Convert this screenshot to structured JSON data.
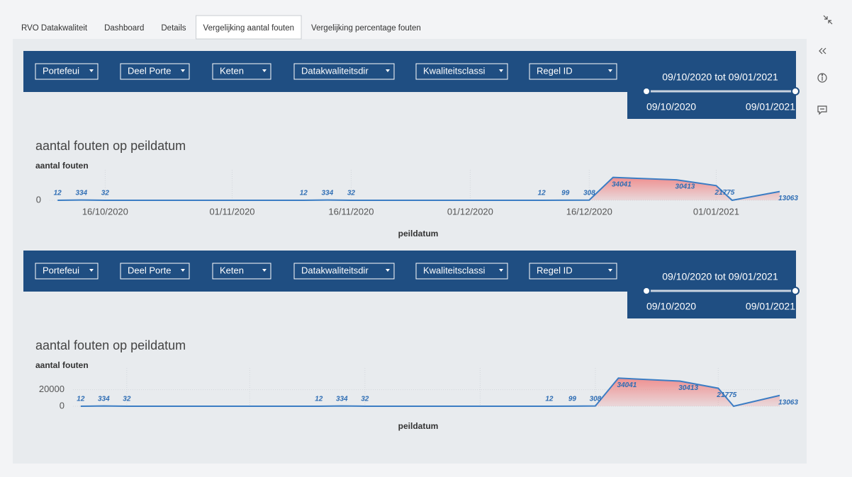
{
  "tabs": [
    "RVO Datakwaliteit",
    "Dashboard",
    "Details",
    "Vergelijking aantal fouten",
    "Vergelijking percentage fouten"
  ],
  "active_tab": 3,
  "panels": [
    {
      "filters": [
        "Portefeui",
        "Deel Porte",
        "Keten",
        "Datakwaliteitsdir",
        "Kwaliteitsclassi",
        "Regel ID"
      ],
      "range": {
        "label": "09/10/2020 tot 09/01/2021",
        "start": "09/10/2020",
        "end": "09/01/2021"
      },
      "chart": {
        "type": "line",
        "title": "aantal fouten op peildatum",
        "y_label": "aantal fouten",
        "x_label": "peildatum",
        "x": [
          "10/10/2020",
          "13/10/2020",
          "16/10/2020",
          "10/11/2020",
          "13/11/2020",
          "16/11/2020",
          "10/12/2020",
          "13/12/2020",
          "16/12/2020",
          "19/12/2020",
          "27/12/2020",
          "01/01/2021",
          "03/01/2021",
          "09/01/2021"
        ],
        "values": [
          12,
          334,
          32,
          12,
          334,
          32,
          12,
          99,
          308,
          34041,
          30413,
          21775,
          0,
          13063
        ],
        "value_labels": [
          "12",
          "334",
          "32",
          "12",
          "334",
          "32",
          "12",
          "99",
          "308",
          "34041",
          "30413",
          "21775",
          null,
          "13063"
        ],
        "xlim": [
          "09/10/2020",
          "09/01/2021"
        ],
        "xticks": [
          "16/10/2020",
          "01/11/2020",
          "16/11/2020",
          "01/12/2020",
          "16/12/2020",
          "01/01/2021"
        ],
        "show_xtick_labels": true,
        "ylim": [
          0,
          40000
        ],
        "yticks": [
          0
        ],
        "color": "#3b7dc4",
        "area_color": "#ef8b8b",
        "area_start": "16/12/2020",
        "grid": true
      }
    },
    {
      "filters": [
        "Portefeui",
        "Deel Porte",
        "Keten",
        "Datakwaliteitsdir",
        "Kwaliteitsclassi",
        "Regel ID"
      ],
      "range": {
        "label": "09/10/2020 tot 09/01/2021",
        "start": "09/10/2020",
        "end": "09/01/2021"
      },
      "chart": {
        "type": "line",
        "title": "aantal fouten op peildatum",
        "y_label": "aantal fouten",
        "x_label": "peildatum",
        "x": [
          "10/10/2020",
          "13/10/2020",
          "16/10/2020",
          "10/11/2020",
          "13/11/2020",
          "16/11/2020",
          "10/12/2020",
          "13/12/2020",
          "16/12/2020",
          "19/12/2020",
          "27/12/2020",
          "01/01/2021",
          "03/01/2021",
          "09/01/2021"
        ],
        "values": [
          12,
          334,
          32,
          12,
          334,
          32,
          12,
          99,
          308,
          34041,
          30413,
          21775,
          0,
          13063
        ],
        "value_labels": [
          "12",
          "334",
          "32",
          "12",
          "334",
          "32",
          "12",
          "99",
          "308",
          "34041",
          "30413",
          "21775",
          null,
          "13063"
        ],
        "xlim": [
          "09/10/2020",
          "09/01/2021"
        ],
        "xticks": [
          "16/10/2020",
          "01/11/2020",
          "16/11/2020",
          "01/12/2020",
          "16/12/2020",
          "01/01/2021"
        ],
        "show_xtick_labels": false,
        "ylim": [
          0,
          42000
        ],
        "yticks": [
          0,
          20000
        ],
        "color": "#3b7dc4",
        "area_color": "#ef8b8b",
        "area_start": "16/12/2020",
        "grid": true
      }
    }
  ]
}
